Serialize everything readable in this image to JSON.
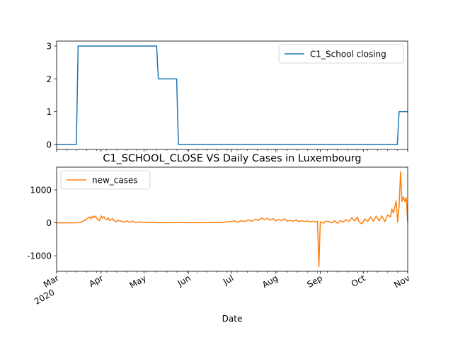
{
  "chart_data": [
    {
      "type": "line",
      "title": "",
      "xlabel": "",
      "ylabel": "",
      "ylim": [
        -0.15,
        3.15
      ],
      "yticks": [
        0,
        1,
        2,
        3
      ],
      "legend": "top-right",
      "series": [
        {
          "name": "C1_School closing",
          "color": "#1f77b4",
          "step": true,
          "points": [
            {
              "x": "2020-03-01",
              "y": 0
            },
            {
              "x": "2020-03-16",
              "y": 3
            },
            {
              "x": "2020-05-11",
              "y": 2
            },
            {
              "x": "2020-05-25",
              "y": 0
            },
            {
              "x": "2020-10-26",
              "y": 1
            },
            {
              "x": "2020-11-01",
              "y": 1
            }
          ]
        }
      ]
    },
    {
      "type": "line",
      "title": "C1_SCHOOL_CLOSE VS Daily Cases in Luxembourg",
      "xlabel": "Date",
      "ylabel": "",
      "ylim": [
        -1470,
        1690
      ],
      "yticks": [
        -1000,
        0,
        1000
      ],
      "legend": "top-left",
      "x_ticks": [
        {
          "date": "2020-03-01",
          "label": "Mar",
          "sub": "2020"
        },
        {
          "date": "2020-04-01",
          "label": "Apr",
          "sub": ""
        },
        {
          "date": "2020-05-01",
          "label": "May",
          "sub": ""
        },
        {
          "date": "2020-06-01",
          "label": "Jun",
          "sub": ""
        },
        {
          "date": "2020-07-01",
          "label": "Jul",
          "sub": ""
        },
        {
          "date": "2020-08-01",
          "label": "Aug",
          "sub": ""
        },
        {
          "date": "2020-09-01",
          "label": "Sep",
          "sub": ""
        },
        {
          "date": "2020-10-01",
          "label": "Oct",
          "sub": ""
        },
        {
          "date": "2020-11-01",
          "label": "Nov",
          "sub": ""
        }
      ],
      "series": [
        {
          "name": "new_cases",
          "color": "#ff7f0e",
          "points": [
            {
              "x": "2020-03-01",
              "y": 0
            },
            {
              "x": "2020-03-10",
              "y": 0
            },
            {
              "x": "2020-03-16",
              "y": 5
            },
            {
              "x": "2020-03-18",
              "y": 25
            },
            {
              "x": "2020-03-20",
              "y": 60
            },
            {
              "x": "2020-03-22",
              "y": 120
            },
            {
              "x": "2020-03-24",
              "y": 180
            },
            {
              "x": "2020-03-25",
              "y": 120
            },
            {
              "x": "2020-03-26",
              "y": 200
            },
            {
              "x": "2020-03-27",
              "y": 150
            },
            {
              "x": "2020-03-28",
              "y": 210
            },
            {
              "x": "2020-03-29",
              "y": 140
            },
            {
              "x": "2020-03-30",
              "y": 100
            },
            {
              "x": "2020-03-31",
              "y": 60
            },
            {
              "x": "2020-04-01",
              "y": 210
            },
            {
              "x": "2020-04-02",
              "y": 140
            },
            {
              "x": "2020-04-03",
              "y": 190
            },
            {
              "x": "2020-04-04",
              "y": 120
            },
            {
              "x": "2020-04-05",
              "y": 90
            },
            {
              "x": "2020-04-06",
              "y": 160
            },
            {
              "x": "2020-04-07",
              "y": 70
            },
            {
              "x": "2020-04-08",
              "y": 90
            },
            {
              "x": "2020-04-09",
              "y": 130
            },
            {
              "x": "2020-04-10",
              "y": 60
            },
            {
              "x": "2020-04-12",
              "y": 40
            },
            {
              "x": "2020-04-13",
              "y": 80
            },
            {
              "x": "2020-04-15",
              "y": 50
            },
            {
              "x": "2020-04-17",
              "y": 20
            },
            {
              "x": "2020-04-19",
              "y": 60
            },
            {
              "x": "2020-04-21",
              "y": 20
            },
            {
              "x": "2020-04-23",
              "y": 50
            },
            {
              "x": "2020-04-25",
              "y": 10
            },
            {
              "x": "2020-04-28",
              "y": 30
            },
            {
              "x": "2020-05-01",
              "y": 10
            },
            {
              "x": "2020-05-05",
              "y": 20
            },
            {
              "x": "2020-05-10",
              "y": 5
            },
            {
              "x": "2020-05-15",
              "y": 10
            },
            {
              "x": "2020-05-20",
              "y": 5
            },
            {
              "x": "2020-05-25",
              "y": 10
            },
            {
              "x": "2020-06-01",
              "y": 5
            },
            {
              "x": "2020-06-10",
              "y": 5
            },
            {
              "x": "2020-06-20",
              "y": 10
            },
            {
              "x": "2020-06-25",
              "y": 15
            },
            {
              "x": "2020-06-28",
              "y": 30
            },
            {
              "x": "2020-07-01",
              "y": 40
            },
            {
              "x": "2020-07-03",
              "y": 60
            },
            {
              "x": "2020-07-05",
              "y": 20
            },
            {
              "x": "2020-07-08",
              "y": 70
            },
            {
              "x": "2020-07-10",
              "y": 40
            },
            {
              "x": "2020-07-13",
              "y": 90
            },
            {
              "x": "2020-07-15",
              "y": 50
            },
            {
              "x": "2020-07-18",
              "y": 110
            },
            {
              "x": "2020-07-20",
              "y": 70
            },
            {
              "x": "2020-07-22",
              "y": 150
            },
            {
              "x": "2020-07-24",
              "y": 90
            },
            {
              "x": "2020-07-26",
              "y": 140
            },
            {
              "x": "2020-07-28",
              "y": 80
            },
            {
              "x": "2020-07-30",
              "y": 130
            },
            {
              "x": "2020-08-01",
              "y": 60
            },
            {
              "x": "2020-08-03",
              "y": 110
            },
            {
              "x": "2020-08-05",
              "y": 70
            },
            {
              "x": "2020-08-07",
              "y": 120
            },
            {
              "x": "2020-08-09",
              "y": 50
            },
            {
              "x": "2020-08-11",
              "y": 80
            },
            {
              "x": "2020-08-13",
              "y": 50
            },
            {
              "x": "2020-08-15",
              "y": 90
            },
            {
              "x": "2020-08-17",
              "y": 40
            },
            {
              "x": "2020-08-19",
              "y": 70
            },
            {
              "x": "2020-08-21",
              "y": 40
            },
            {
              "x": "2020-08-23",
              "y": 60
            },
            {
              "x": "2020-08-25",
              "y": 30
            },
            {
              "x": "2020-08-27",
              "y": 50
            },
            {
              "x": "2020-08-29",
              "y": 20
            },
            {
              "x": "2020-08-30",
              "y": 50
            },
            {
              "x": "2020-08-31",
              "y": -1330
            },
            {
              "x": "2020-09-01",
              "y": 30
            },
            {
              "x": "2020-09-03",
              "y": -10
            },
            {
              "x": "2020-09-05",
              "y": 50
            },
            {
              "x": "2020-09-07",
              "y": 40
            },
            {
              "x": "2020-09-09",
              "y": 0
            },
            {
              "x": "2020-09-11",
              "y": 60
            },
            {
              "x": "2020-09-13",
              "y": -20
            },
            {
              "x": "2020-09-15",
              "y": 70
            },
            {
              "x": "2020-09-17",
              "y": 20
            },
            {
              "x": "2020-09-19",
              "y": 100
            },
            {
              "x": "2020-09-21",
              "y": 40
            },
            {
              "x": "2020-09-23",
              "y": 150
            },
            {
              "x": "2020-09-25",
              "y": 60
            },
            {
              "x": "2020-09-27",
              "y": 180
            },
            {
              "x": "2020-09-28",
              "y": 30
            },
            {
              "x": "2020-09-30",
              "y": -30
            },
            {
              "x": "2020-10-02",
              "y": 120
            },
            {
              "x": "2020-10-04",
              "y": 40
            },
            {
              "x": "2020-10-06",
              "y": 180
            },
            {
              "x": "2020-10-08",
              "y": 50
            },
            {
              "x": "2020-10-10",
              "y": 200
            },
            {
              "x": "2020-10-12",
              "y": 60
            },
            {
              "x": "2020-10-14",
              "y": 210
            },
            {
              "x": "2020-10-16",
              "y": 40
            },
            {
              "x": "2020-10-18",
              "y": 240
            },
            {
              "x": "2020-10-20",
              "y": 180
            },
            {
              "x": "2020-10-21",
              "y": 420
            },
            {
              "x": "2020-10-22",
              "y": 300
            },
            {
              "x": "2020-10-23",
              "y": 480
            },
            {
              "x": "2020-10-24",
              "y": 660
            },
            {
              "x": "2020-10-25",
              "y": 20
            },
            {
              "x": "2020-10-26",
              "y": 520
            },
            {
              "x": "2020-10-27",
              "y": 1550
            },
            {
              "x": "2020-10-28",
              "y": 650
            },
            {
              "x": "2020-10-29",
              "y": 790
            },
            {
              "x": "2020-10-30",
              "y": 650
            },
            {
              "x": "2020-10-31",
              "y": 760
            },
            {
              "x": "2020-11-01",
              "y": 20
            }
          ]
        }
      ]
    }
  ]
}
